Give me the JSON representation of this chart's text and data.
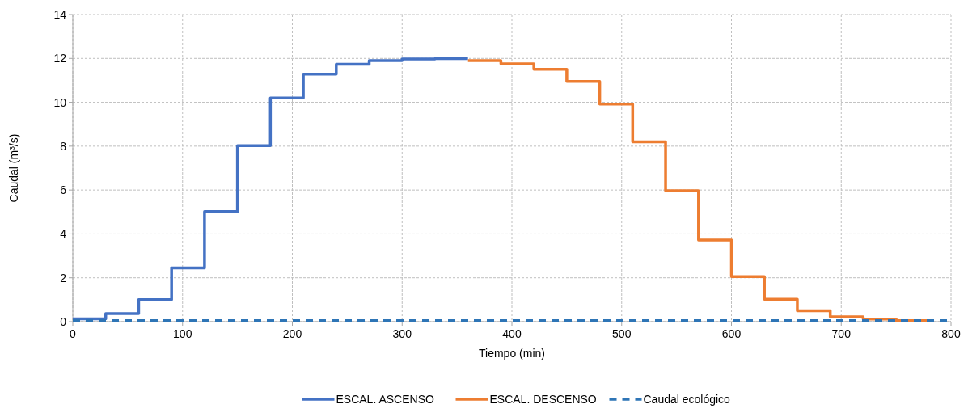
{
  "chart_data": {
    "type": "step",
    "xlabel": "Tiempo (min)",
    "ylabel": "Caudal (m³/s)",
    "xlim": [
      0,
      800
    ],
    "ylim": [
      0,
      14
    ],
    "xticks": [
      0,
      100,
      200,
      300,
      400,
      500,
      600,
      700,
      800
    ],
    "yticks": [
      0,
      2,
      4,
      6,
      8,
      10,
      12,
      14
    ],
    "grid": true,
    "legend": "bottom",
    "series": [
      {
        "name": "ESCAL. ASCENSO",
        "color": "#4472c4",
        "x": [
          0,
          30,
          60,
          90,
          120,
          150,
          180,
          210,
          240,
          270,
          300,
          330,
          360
        ],
        "values": [
          0.13,
          0.37,
          1.0,
          2.45,
          5.02,
          8.02,
          10.2,
          11.28,
          11.73,
          11.9,
          11.97,
          11.99,
          11.99
        ]
      },
      {
        "name": "ESCAL. DESCENSO",
        "color": "#ed7d31",
        "x": [
          360,
          390,
          420,
          450,
          480,
          510,
          540,
          570,
          600,
          630,
          660,
          690,
          720,
          750,
          780
        ],
        "values": [
          11.9,
          11.75,
          11.5,
          10.95,
          9.92,
          8.2,
          5.97,
          3.72,
          2.05,
          1.02,
          0.5,
          0.22,
          0.12,
          0.05,
          0.05
        ]
      },
      {
        "name": "Caudal ecológico",
        "color": "#2e75b6",
        "type": "line",
        "line_style": "dashed",
        "x": [
          0,
          800
        ],
        "values": [
          0.05,
          0.05
        ]
      }
    ]
  }
}
